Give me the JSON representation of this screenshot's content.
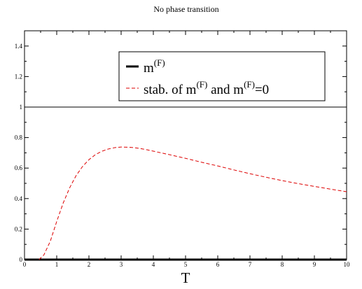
{
  "chart_data": {
    "type": "line",
    "title": "No phase transition",
    "xlabel": "T",
    "ylabel": "",
    "xlim": [
      0,
      10
    ],
    "ylim": [
      0,
      1.5
    ],
    "x_ticks": [
      "0",
      "1",
      "2",
      "3",
      "4",
      "5",
      "6",
      "7",
      "8",
      "9",
      "10"
    ],
    "y_ticks": [
      "0",
      "0.2",
      "0.4",
      "0.6",
      "0.8",
      "1",
      "1.2",
      "1.4"
    ],
    "grid": false,
    "legend_position": "top-right",
    "reference_line": {
      "y": 1,
      "color": "#000000"
    },
    "series": [
      {
        "name": "m(F)",
        "legend_base": "m",
        "legend_sup": "(F)",
        "color": "#000000",
        "style": "solid",
        "x": [
          0,
          10
        ],
        "y": [
          0,
          0
        ]
      },
      {
        "name": "stab. of m(F) and m(F)=0",
        "legend_parts": [
          "stab. of m",
          "(F)",
          " and m",
          "(F)",
          "=0"
        ],
        "color": "#dd0000",
        "style": "dashed",
        "x": [
          0.45,
          0.5,
          0.6,
          0.8,
          1.0,
          1.2,
          1.4,
          1.6,
          1.8,
          2.0,
          2.2,
          2.4,
          2.6,
          2.8,
          3.0,
          3.2,
          3.4,
          3.6,
          3.8,
          4.0,
          4.5,
          5.0,
          5.5,
          6.0,
          6.5,
          7.0,
          7.5,
          8.0,
          8.5,
          9.0,
          9.5,
          10.0
        ],
        "y": [
          0.0,
          0.01,
          0.03,
          0.12,
          0.25,
          0.37,
          0.47,
          0.55,
          0.61,
          0.655,
          0.688,
          0.71,
          0.725,
          0.734,
          0.738,
          0.737,
          0.734,
          0.728,
          0.72,
          0.711,
          0.688,
          0.664,
          0.638,
          0.614,
          0.588,
          0.563,
          0.54,
          0.518,
          0.498,
          0.48,
          0.462,
          0.445
        ]
      }
    ]
  }
}
